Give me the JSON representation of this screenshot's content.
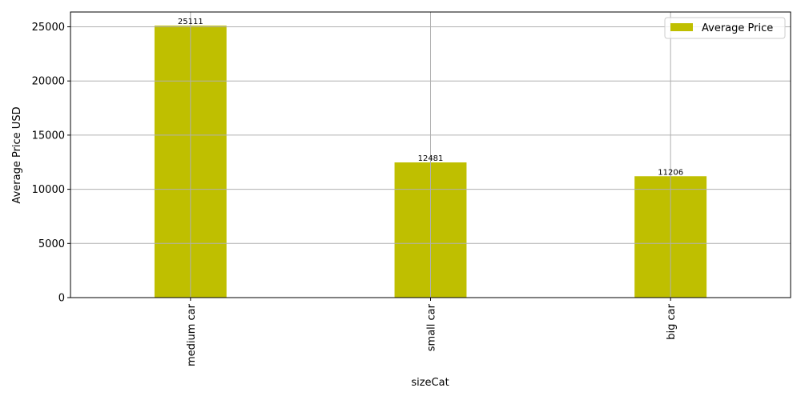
{
  "chart_data": {
    "type": "bar",
    "categories": [
      "medium car",
      "small car",
      "big car"
    ],
    "series": [
      {
        "name": "Average Price",
        "values": [
          25111,
          12481,
          11206
        ],
        "color": "#bfbf00"
      }
    ],
    "data_labels": [
      "25111",
      "12481",
      "11206"
    ],
    "xlabel": "sizeCat",
    "ylabel": "Average Price USD",
    "ylim": [
      0,
      26366
    ],
    "yticks": [
      0,
      5000,
      10000,
      15000,
      20000,
      25000
    ],
    "grid": true,
    "legend": {
      "position": "top-right",
      "entries": [
        "Average Price"
      ]
    }
  }
}
